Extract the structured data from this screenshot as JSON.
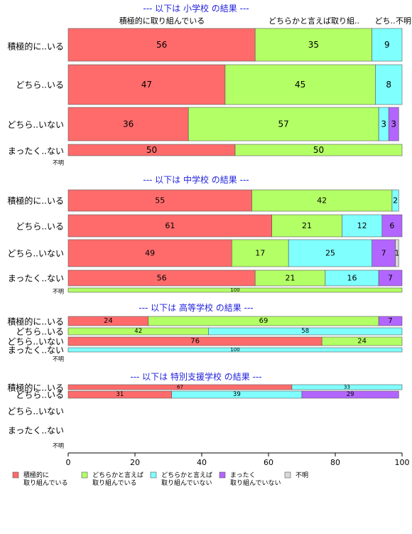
{
  "chart_data": {
    "type": "bar",
    "orientation": "horizontal",
    "stacked": true,
    "xlim": [
      0,
      100
    ],
    "x_ticks": [
      0,
      20,
      40,
      60,
      80,
      100
    ],
    "categories": [
      "積極的に..いる",
      "どちら..いる",
      "どちら..いない",
      "まったく..ない",
      "不明"
    ],
    "series_colors": [
      "#ff6b6b",
      "#b3ff66",
      "#80ffff",
      "#b266ff",
      "#d9d9d9"
    ],
    "header_labels": [
      "積極的に取り組んでいる",
      "どちらかと言えば取り組..",
      "どち..",
      "不明"
    ],
    "legend": [
      "積極的に\n取り組んでいる",
      "どちらかと言えば\n取り組んでいる",
      "どちらかと言えば\n取り組んでいない",
      "まったく\n取り組んでいない",
      "不明"
    ],
    "panels": [
      {
        "title": "--- 以下は 小学校 の結果 ---",
        "rows": [
          {
            "values": [
              56,
              35,
              9,
              0,
              0
            ]
          },
          {
            "values": [
              47,
              45,
              8,
              0,
              0
            ]
          },
          {
            "values": [
              36,
              57,
              3,
              3,
              0
            ]
          },
          {
            "values": [
              50,
              50,
              0,
              0,
              0
            ]
          },
          {
            "values": [
              0,
              0,
              0,
              0,
              0
            ]
          }
        ]
      },
      {
        "title": "--- 以下は 中学校 の結果 ---",
        "rows": [
          {
            "values": [
              55,
              42,
              2,
              0,
              0
            ]
          },
          {
            "values": [
              61,
              21,
              12,
              6,
              0
            ]
          },
          {
            "values": [
              49,
              17,
              25,
              7,
              1
            ]
          },
          {
            "values": [
              56,
              21,
              16,
              7,
              0
            ]
          },
          {
            "values": [
              0,
              100,
              0,
              0,
              0
            ]
          }
        ]
      },
      {
        "title": "--- 以下は 高等学校 の結果 ---",
        "rows": [
          {
            "values": [
              24,
              69,
              0,
              7,
              0
            ]
          },
          {
            "values": [
              0,
              42,
              58,
              0,
              0
            ]
          },
          {
            "values": [
              76,
              24,
              0,
              0,
              0
            ]
          },
          {
            "values": [
              0,
              0,
              100,
              0,
              0
            ]
          },
          {
            "values": [
              0,
              0,
              0,
              0,
              0
            ]
          }
        ]
      },
      {
        "title": "--- 以下は 特別支援学校 の結果 ---",
        "rows": [
          {
            "values": [
              67,
              0,
              33,
              0,
              0
            ]
          },
          {
            "values": [
              31,
              0,
              39,
              29,
              0
            ]
          },
          {
            "values": [
              0,
              0,
              0,
              0,
              0
            ]
          },
          {
            "values": [
              0,
              0,
              0,
              0,
              0
            ]
          },
          {
            "values": [
              0,
              0,
              0,
              0,
              0
            ]
          }
        ]
      }
    ]
  }
}
